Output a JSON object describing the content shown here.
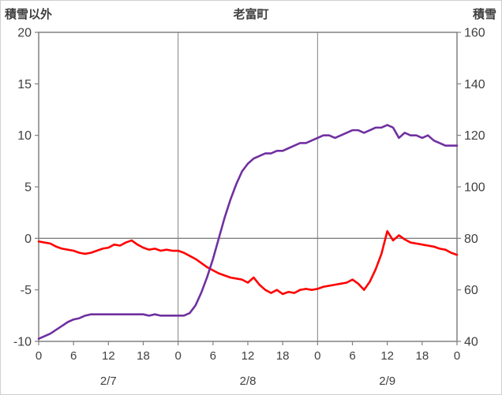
{
  "chart_data": {
    "type": "line",
    "title": "老富町",
    "grid_color": "#808080",
    "axis_text_color": "#404040",
    "left_axis": {
      "title": "積雪以外",
      "min": -10,
      "max": 20,
      "tick_step": 5,
      "tick_labels": [
        "20",
        "15",
        "10",
        "5",
        "0",
        "-5",
        "-10"
      ],
      "tick_values": [
        20,
        15,
        10,
        5,
        0,
        -5,
        -10
      ]
    },
    "right_axis": {
      "title": "積雪",
      "min": 40,
      "max": 160,
      "tick_step": 20,
      "tick_labels": [
        "160",
        "140",
        "120",
        "100",
        "80",
        "60",
        "40"
      ],
      "tick_values": [
        160,
        140,
        120,
        100,
        80,
        60,
        40
      ]
    },
    "x_axis": {
      "hour_tick_labels": [
        "0",
        "6",
        "12",
        "18",
        "0",
        "6",
        "12",
        "18",
        "0",
        "6",
        "12",
        "18",
        "0"
      ],
      "hour_tick_positions": [
        0,
        6,
        12,
        18,
        24,
        30,
        36,
        42,
        48,
        54,
        60,
        66,
        72
      ],
      "date_labels": [
        "2/7",
        "2/8",
        "2/9"
      ],
      "date_positions": [
        12,
        36,
        60
      ],
      "day_boundaries": [
        24,
        48
      ],
      "min": 0,
      "max": 72
    },
    "x_hours": [
      0,
      1,
      2,
      3,
      4,
      5,
      6,
      7,
      8,
      9,
      10,
      11,
      12,
      13,
      14,
      15,
      16,
      17,
      18,
      19,
      20,
      21,
      22,
      23,
      24,
      25,
      26,
      27,
      28,
      29,
      30,
      31,
      32,
      33,
      34,
      35,
      36,
      37,
      38,
      39,
      40,
      41,
      42,
      43,
      44,
      45,
      46,
      47,
      48,
      49,
      50,
      51,
      52,
      53,
      54,
      55,
      56,
      57,
      58,
      59,
      60,
      61,
      62,
      63,
      64,
      65,
      66,
      67,
      68,
      69,
      70,
      71,
      72
    ],
    "series": [
      {
        "name": "積雪以外",
        "axis": "left",
        "color": "#FF0000",
        "values": [
          -0.3,
          -0.4,
          -0.5,
          -0.8,
          -1.0,
          -1.1,
          -1.2,
          -1.4,
          -1.5,
          -1.4,
          -1.2,
          -1.0,
          -0.9,
          -0.6,
          -0.7,
          -0.4,
          -0.2,
          -0.6,
          -0.9,
          -1.1,
          -1.0,
          -1.2,
          -1.1,
          -1.2,
          -1.2,
          -1.4,
          -1.7,
          -2.0,
          -2.4,
          -2.8,
          -3.1,
          -3.4,
          -3.6,
          -3.8,
          -3.9,
          -4.0,
          -4.3,
          -3.8,
          -4.5,
          -5.0,
          -5.3,
          -5.0,
          -5.4,
          -5.2,
          -5.3,
          -5.0,
          -4.9,
          -5.0,
          -4.9,
          -4.7,
          -4.6,
          -4.5,
          -4.4,
          -4.3,
          -4.0,
          -4.4,
          -5.0,
          -4.2,
          -3.0,
          -1.5,
          0.7,
          -0.2,
          0.3,
          -0.1,
          -0.4,
          -0.5,
          -0.6,
          -0.7,
          -0.8,
          -1.0,
          -1.1,
          -1.4,
          -1.6
        ]
      },
      {
        "name": "積雪",
        "axis": "right",
        "color": "#7030A0",
        "values": [
          41,
          42,
          43,
          44.5,
          46,
          47.5,
          48.5,
          49,
          50,
          50.5,
          50.5,
          50.5,
          50.5,
          50.5,
          50.5,
          50.5,
          50.5,
          50.5,
          50.5,
          50,
          50.5,
          50,
          50,
          50,
          50,
          50,
          51,
          54,
          59,
          65,
          72,
          80,
          88,
          95,
          101,
          106,
          109,
          111,
          112,
          113,
          113,
          114,
          114,
          115,
          116,
          117,
          117,
          118,
          119,
          120,
          120,
          119,
          120,
          121,
          122,
          122,
          121,
          122,
          123,
          123,
          124,
          123,
          119,
          121,
          120,
          120,
          119,
          120,
          118,
          117,
          116,
          116,
          116
        ]
      }
    ]
  }
}
